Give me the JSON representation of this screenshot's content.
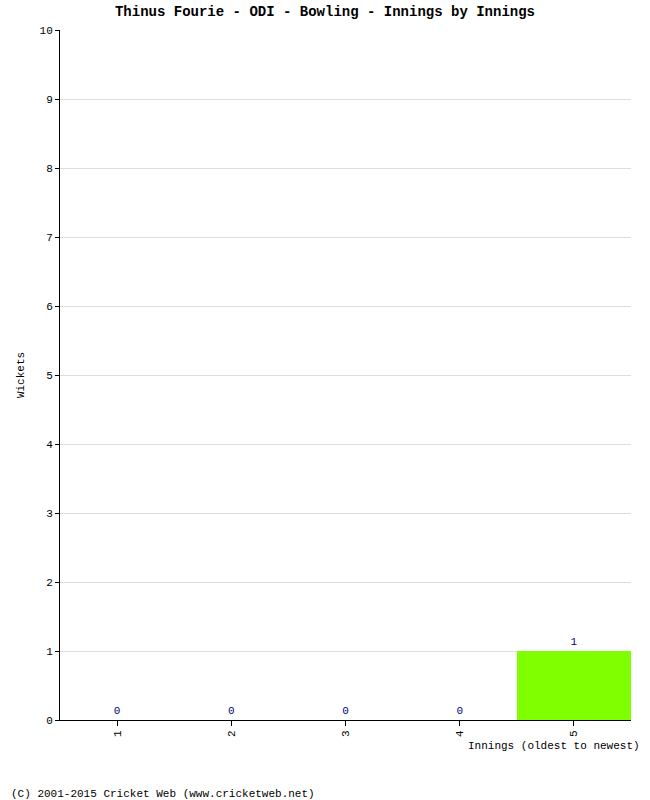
{
  "chart_data": {
    "type": "bar",
    "title": "Thinus Fourie - ODI - Bowling - Innings by Innings",
    "x_label": "Innings (oldest to newest)",
    "y_label": "Wickets",
    "categories": [
      "1",
      "2",
      "3",
      "4",
      "5"
    ],
    "values": [
      0,
      0,
      0,
      0,
      1
    ],
    "color": "#80ff00",
    "ylim": [
      0,
      10
    ],
    "yticks": [
      0,
      1,
      2,
      3,
      4,
      5,
      6,
      7,
      8,
      9,
      10
    ],
    "grid": true,
    "data_labels": true,
    "source": "(C) 2001-2015 Cricket Web (www.cricketweb.net)"
  }
}
